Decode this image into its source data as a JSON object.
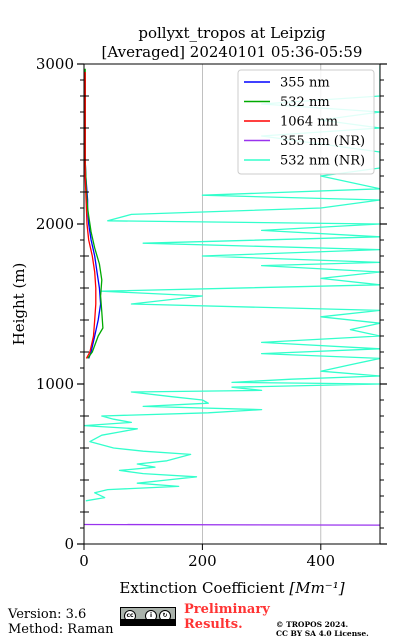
{
  "chart_data": {
    "type": "line",
    "title": "pollyxt_tropos at Leipzig",
    "subtitle": "[Averaged] 20240101 05:36-05:59",
    "xlabel": "Extinction Coefficient",
    "xlabel_unit": "[Mm⁻¹]",
    "ylabel": "Height (m)",
    "xlim": [
      0,
      500
    ],
    "ylim": [
      0,
      3000
    ],
    "x_ticks": [
      0,
      200,
      400
    ],
    "y_ticks": [
      0,
      1000,
      2000,
      3000
    ],
    "grid": "vertical",
    "legend_position": "top-right",
    "series": [
      {
        "name": "355 nm",
        "color": "#0000ff",
        "x": [
          8,
          12,
          18,
          24,
          28,
          26,
          22,
          18,
          12,
          8,
          6,
          6,
          5,
          3,
          2,
          2,
          2,
          2,
          2,
          2,
          2,
          2
        ],
        "y": [
          1160,
          1200,
          1300,
          1400,
          1500,
          1600,
          1700,
          1800,
          1900,
          2000,
          2100,
          2150,
          2200,
          2300,
          2400,
          2500,
          2600,
          2700,
          2750,
          2800,
          2850,
          2900
        ]
      },
      {
        "name": "532 nm",
        "color": "#00aa00",
        "x": [
          6,
          14,
          24,
          32,
          30,
          28,
          30,
          26,
          18,
          12,
          10,
          8,
          6,
          4,
          3,
          2,
          2,
          2,
          2,
          2,
          2,
          2
        ],
        "y": [
          1160,
          1200,
          1300,
          1350,
          1450,
          1550,
          1650,
          1750,
          1850,
          1950,
          2000,
          2050,
          2100,
          2200,
          2300,
          2400,
          2500,
          2600,
          2700,
          2800,
          2900,
          2970
        ]
      },
      {
        "name": "1064 nm",
        "color": "#ff0000",
        "x": [
          4,
          10,
          16,
          18,
          20,
          20,
          18,
          14,
          8,
          5,
          4,
          3,
          2,
          2,
          2,
          2,
          2,
          2,
          2
        ],
        "y": [
          1160,
          1200,
          1300,
          1400,
          1500,
          1600,
          1700,
          1800,
          1900,
          2000,
          2100,
          2200,
          2300,
          2400,
          2500,
          2600,
          2700,
          2800,
          2950
        ]
      },
      {
        "name": "355 nm (NR)",
        "color": "#9933ee",
        "x": [
          0,
          500
        ],
        "y": [
          122,
          118
        ]
      },
      {
        "name": "532 nm (NR)",
        "color": "#33ffcc",
        "x": [
          3,
          35,
          18,
          40,
          160,
          90,
          140,
          190,
          100,
          60,
          120,
          90,
          140,
          180,
          100,
          50,
          10,
          30,
          60,
          90,
          0,
          80,
          50,
          30,
          210,
          300,
          100,
          210,
          200,
          150,
          80,
          300,
          250,
          500,
          250,
          350,
          500,
          400,
          450,
          500,
          300,
          500,
          300,
          500,
          450,
          500,
          400,
          500,
          80,
          200,
          30,
          500,
          400,
          500,
          300,
          500,
          200,
          500,
          100,
          500,
          300,
          500,
          40,
          80,
          400,
          500,
          200,
          500,
          400,
          500,
          500,
          500,
          400,
          300,
          500,
          400,
          500,
          300,
          500,
          500,
          500,
          500
        ],
        "y": [
          270,
          290,
          320,
          340,
          360,
          380,
          400,
          420,
          440,
          460,
          480,
          500,
          520,
          560,
          580,
          600,
          640,
          680,
          700,
          720,
          740,
          760,
          780,
          800,
          820,
          840,
          860,
          880,
          900,
          920,
          950,
          960,
          980,
          1000,
          1010,
          1030,
          1050,
          1080,
          1120,
          1160,
          1190,
          1220,
          1260,
          1300,
          1340,
          1380,
          1420,
          1460,
          1500,
          1550,
          1580,
          1620,
          1660,
          1700,
          1740,
          1760,
          1800,
          1840,
          1880,
          1920,
          1960,
          2000,
          2020,
          2060,
          2100,
          2150,
          2180,
          2220,
          2300,
          2350,
          2400,
          2450,
          2500,
          2550,
          2600,
          2650,
          2700,
          2750,
          2800,
          2880,
          2960,
          2990
        ]
      }
    ]
  },
  "footer": {
    "version": "Version: 3.6",
    "method": "Method: Raman",
    "preliminary_line1": "Preliminary",
    "preliminary_line2": "Results.",
    "copyright_line1": "© TROPOS 2024.",
    "copyright_line2": "CC BY SA 4.0 License."
  }
}
